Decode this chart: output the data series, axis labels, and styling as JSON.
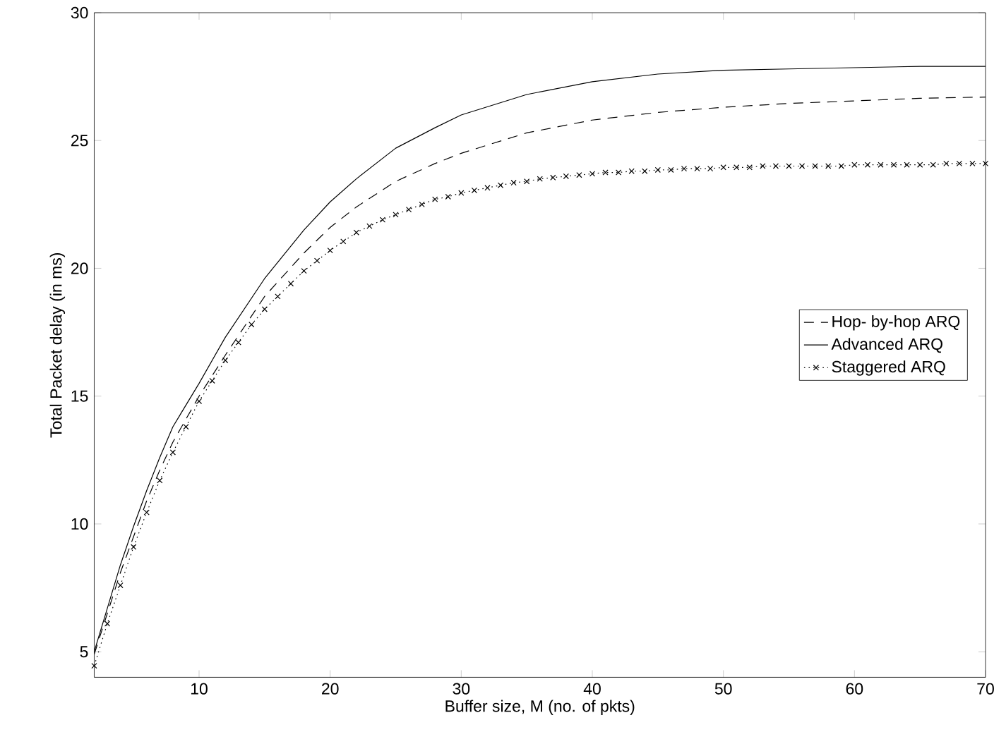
{
  "chart_data": {
    "type": "line",
    "xlabel": "Buffer size, M (no. of pkts)",
    "ylabel": "Total Packet delay (in ms)",
    "xlim": [
      2,
      70
    ],
    "ylim": [
      4,
      30
    ],
    "xticks": [
      10,
      20,
      30,
      40,
      50,
      60,
      70
    ],
    "yticks": [
      5,
      10,
      15,
      20,
      25,
      30
    ],
    "legend": "right",
    "series": [
      {
        "name": "Hop- by-hop ARQ",
        "color": "#000000",
        "line_style": "dashed",
        "marker": "none",
        "x": [
          2,
          3,
          4,
          5,
          6,
          7,
          8,
          10,
          12,
          15,
          18,
          20,
          22,
          25,
          28,
          30,
          35,
          40,
          45,
          50,
          55,
          60,
          65,
          70
        ],
        "values": [
          4.9,
          6.5,
          8.1,
          9.5,
          10.9,
          12.1,
          13.2,
          15.0,
          16.6,
          18.9,
          20.6,
          21.6,
          22.4,
          23.4,
          24.1,
          24.5,
          25.3,
          25.8,
          26.1,
          26.3,
          26.45,
          26.55,
          26.65,
          26.7
        ]
      },
      {
        "name": "Advanced ARQ",
        "color": "#000000",
        "line_style": "solid",
        "marker": "none",
        "x": [
          2,
          3,
          4,
          5,
          6,
          7,
          8,
          10,
          12,
          15,
          18,
          20,
          22,
          25,
          28,
          30,
          35,
          40,
          45,
          50,
          55,
          60,
          65,
          70
        ],
        "values": [
          5.0,
          6.7,
          8.4,
          9.9,
          11.3,
          12.6,
          13.8,
          15.5,
          17.3,
          19.6,
          21.5,
          22.6,
          23.5,
          24.7,
          25.5,
          26.0,
          26.8,
          27.3,
          27.6,
          27.75,
          27.8,
          27.85,
          27.9,
          27.9
        ]
      },
      {
        "name": "Staggered ARQ",
        "color": "#000000",
        "line_style": "dotted",
        "marker": "cross",
        "x": [
          2,
          3,
          4,
          5,
          6,
          7,
          8,
          9,
          10,
          11,
          12,
          13,
          14,
          15,
          16,
          17,
          18,
          19,
          20,
          21,
          22,
          23,
          24,
          25,
          26,
          27,
          28,
          29,
          30,
          31,
          32,
          33,
          34,
          35,
          36,
          37,
          38,
          39,
          40,
          41,
          42,
          43,
          44,
          45,
          46,
          47,
          48,
          49,
          50,
          51,
          52,
          53,
          54,
          55,
          56,
          57,
          58,
          59,
          60,
          61,
          62,
          63,
          64,
          65,
          66,
          67,
          68,
          69,
          70
        ],
        "values": [
          4.45,
          6.1,
          7.6,
          9.1,
          10.45,
          11.7,
          12.8,
          13.8,
          14.8,
          15.6,
          16.4,
          17.1,
          17.8,
          18.4,
          18.9,
          19.4,
          19.9,
          20.3,
          20.7,
          21.05,
          21.4,
          21.65,
          21.9,
          22.1,
          22.3,
          22.5,
          22.7,
          22.8,
          22.95,
          23.05,
          23.15,
          23.25,
          23.35,
          23.4,
          23.5,
          23.55,
          23.6,
          23.65,
          23.7,
          23.75,
          23.75,
          23.8,
          23.8,
          23.85,
          23.85,
          23.9,
          23.9,
          23.9,
          23.95,
          23.95,
          23.95,
          24.0,
          24.0,
          24.0,
          24.0,
          24.0,
          24.0,
          24.0,
          24.05,
          24.05,
          24.05,
          24.05,
          24.05,
          24.05,
          24.05,
          24.1,
          24.1,
          24.1,
          24.1
        ]
      }
    ]
  }
}
